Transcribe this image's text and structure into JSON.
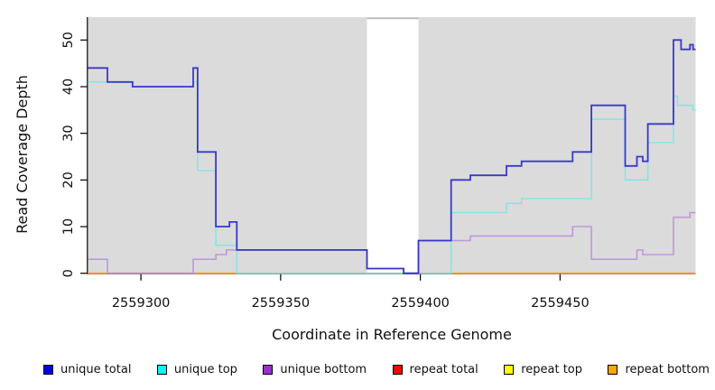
{
  "chart_data": {
    "type": "line",
    "step": true,
    "title": "",
    "xlabel": "Coordinate in Reference Genome",
    "ylabel": "Read Coverage Depth",
    "xlim": [
      2559281,
      2559498.5
    ],
    "ylim": [
      0,
      54.9
    ],
    "x_ticks": [
      2559300,
      2559350,
      2559400,
      2559450
    ],
    "y_ticks": [
      0,
      10,
      20,
      30,
      40,
      50
    ],
    "grid": false,
    "legend_position": "bottom",
    "plot_background": "#dbdbdb",
    "gap_region": {
      "x_start": 2559380.9,
      "x_end": 2559399.3,
      "color": "#ffffff"
    },
    "axis_color": "#000000",
    "draw_order": [
      "repeat total",
      "repeat top",
      "repeat bottom",
      "unique bottom",
      "unique top",
      "unique total"
    ],
    "series": [
      {
        "name": "unique total",
        "legend_color": "#0000ee",
        "line_color": "#2b2bc8",
        "steps": [
          [
            2559281,
            44
          ],
          [
            2559288,
            41
          ],
          [
            2559297,
            40
          ],
          [
            2559318.7,
            44
          ],
          [
            2559320.3,
            26
          ],
          [
            2559326.8,
            10
          ],
          [
            2559331.7,
            11
          ],
          [
            2559334.3,
            5
          ],
          [
            2559380.9,
            1
          ],
          [
            2559394,
            0
          ],
          [
            2559399.3,
            7
          ],
          [
            2559411,
            20
          ],
          [
            2559417.9,
            21
          ],
          [
            2559430.8,
            23
          ],
          [
            2559436.2,
            24
          ],
          [
            2559454.5,
            26
          ],
          [
            2559461.2,
            36
          ],
          [
            2559473.3,
            23
          ],
          [
            2559477.5,
            25
          ],
          [
            2559479.6,
            24
          ],
          [
            2559481.4,
            32
          ],
          [
            2559490.6,
            50
          ],
          [
            2559493.3,
            48
          ],
          [
            2559496.5,
            49
          ],
          [
            2559497.6,
            48
          ]
        ]
      },
      {
        "name": "unique top",
        "legend_color": "#00ffff",
        "line_color": "#7de5e5",
        "steps": [
          [
            2559281,
            41
          ],
          [
            2559297,
            40
          ],
          [
            2559318.7,
            41
          ],
          [
            2559320.3,
            22
          ],
          [
            2559326.8,
            6
          ],
          [
            2559334.3,
            0
          ],
          [
            2559411,
            13
          ],
          [
            2559430.8,
            15
          ],
          [
            2559436.2,
            16
          ],
          [
            2559461.2,
            33
          ],
          [
            2559473.3,
            20
          ],
          [
            2559481.4,
            28
          ],
          [
            2559490.6,
            38
          ],
          [
            2559492,
            36
          ],
          [
            2559497.6,
            35
          ]
        ]
      },
      {
        "name": "unique bottom",
        "legend_color": "#9b30d0",
        "line_color": "#ba90d5",
        "steps": [
          [
            2559281,
            3
          ],
          [
            2559288,
            0
          ],
          [
            2559318.7,
            3
          ],
          [
            2559326.8,
            4
          ],
          [
            2559330.6,
            5
          ],
          [
            2559380.9,
            1
          ],
          [
            2559394,
            0
          ],
          [
            2559399.3,
            7
          ],
          [
            2559417.9,
            8
          ],
          [
            2559454.5,
            10
          ],
          [
            2559461.2,
            3
          ],
          [
            2559477.5,
            5
          ],
          [
            2559479.6,
            4
          ],
          [
            2559490.6,
            12
          ],
          [
            2559496.5,
            13
          ]
        ]
      },
      {
        "name": "repeat total",
        "legend_color": "#ff0000",
        "line_color": "#dd3333",
        "steps": [
          [
            2559281,
            0
          ]
        ]
      },
      {
        "name": "repeat top",
        "legend_color": "#ffff00",
        "line_color": "#eedd00",
        "steps": [
          [
            2559281,
            0
          ]
        ]
      },
      {
        "name": "repeat bottom",
        "legend_color": "#ffa500",
        "line_color": "#ff9e1e",
        "steps": [
          [
            2559281,
            0
          ]
        ]
      }
    ]
  }
}
